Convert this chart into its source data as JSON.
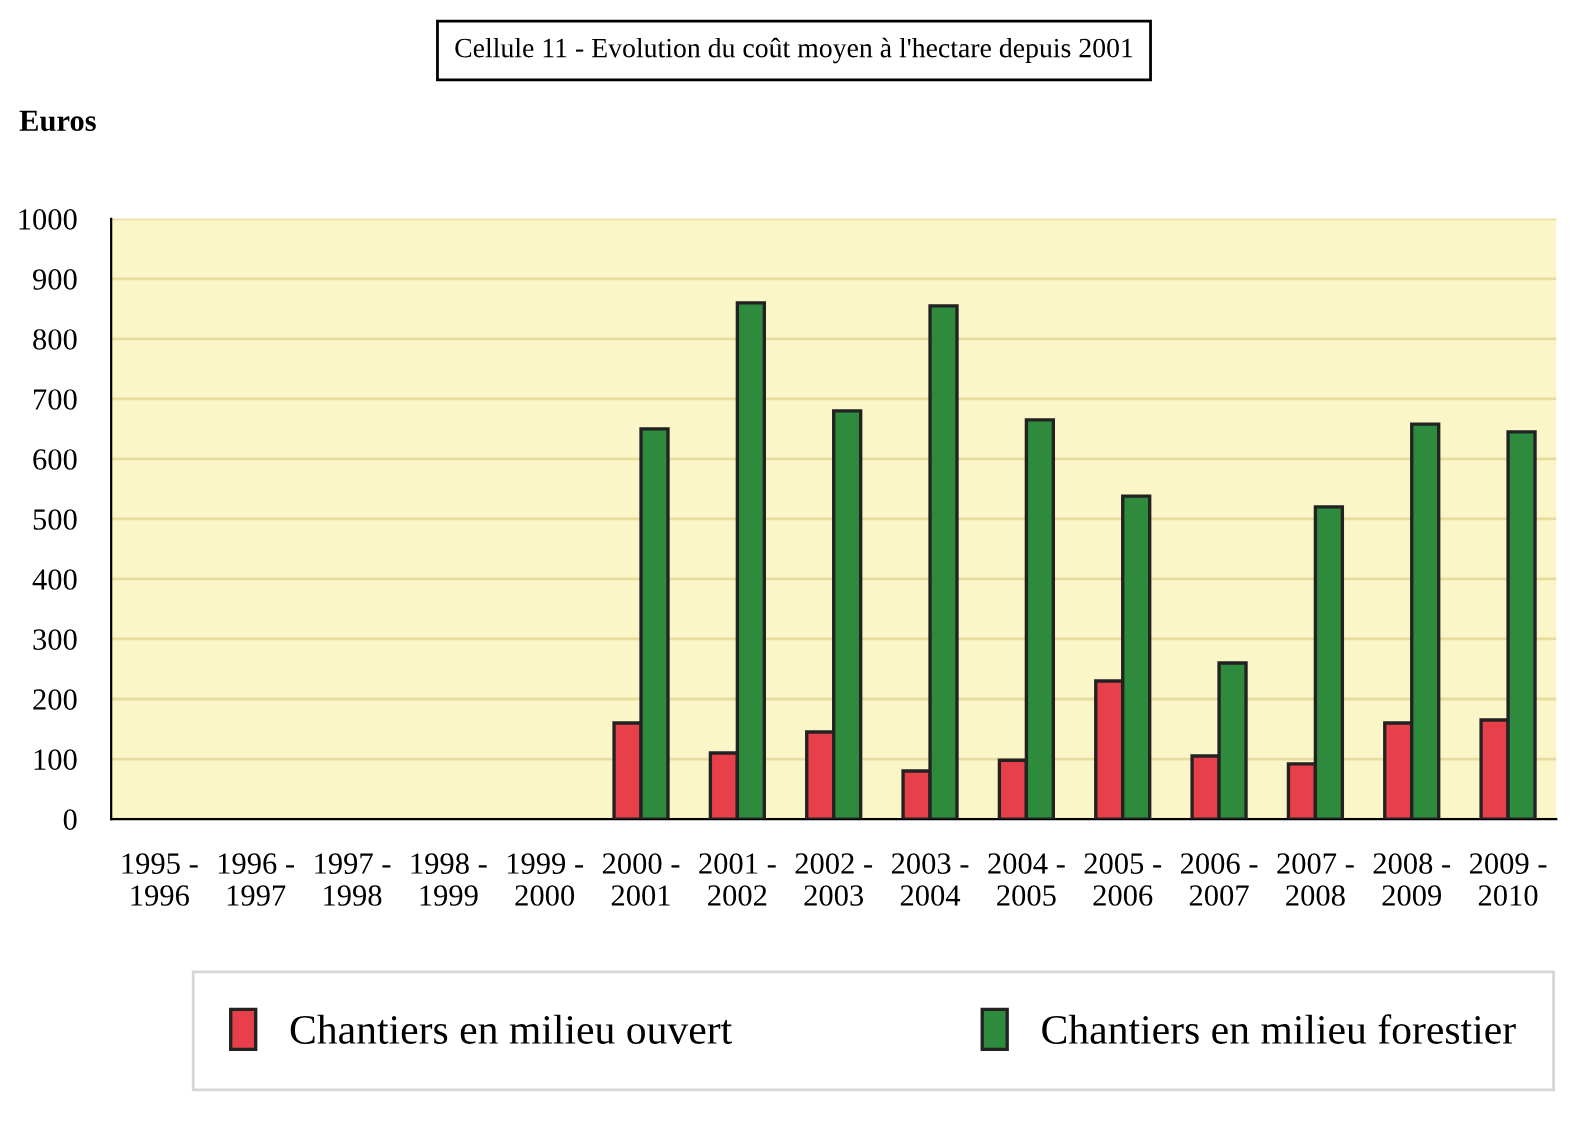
{
  "chart_data": {
    "type": "bar",
    "title": "Cellule 11 - Evolution du coût moyen à l'hectare depuis 2001",
    "ylabel": "Euros",
    "categories": [
      "1995 -\n1996",
      "1996 -\n1997",
      "1997 -\n1998",
      "1998 -\n1999",
      "1999 -\n2000",
      "2000 -\n2001",
      "2001 -\n2002",
      "2002 -\n2003",
      "2003 -\n2004",
      "2004 -\n2005",
      "2005 -\n2006",
      "2006 -\n2007",
      "2007 -\n2008",
      "2008 -\n2009",
      "2009 -\n2010"
    ],
    "series": [
      {
        "name": "Chantiers en milieu ouvert",
        "color": "#e8404a",
        "values": [
          null,
          null,
          null,
          null,
          null,
          160,
          110,
          145,
          80,
          98,
          230,
          105,
          92,
          160,
          165
        ]
      },
      {
        "name": "Chantiers en milieu forestier",
        "color": "#2e8a3c",
        "values": [
          null,
          null,
          null,
          null,
          null,
          650,
          860,
          680,
          855,
          665,
          538,
          260,
          520,
          658,
          645
        ]
      }
    ],
    "ylim": [
      0,
      1000
    ],
    "yticks": [
      0,
      100,
      200,
      300,
      400,
      500,
      600,
      700,
      800,
      900,
      1000
    ],
    "grid": "y",
    "legend": "bottom"
  }
}
